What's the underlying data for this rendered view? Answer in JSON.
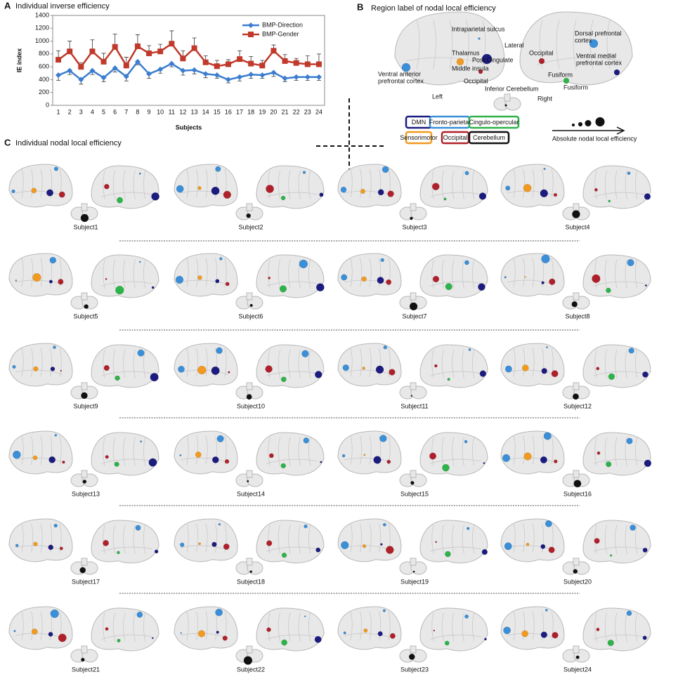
{
  "chart_data": {
    "type": "line",
    "panel": "A",
    "title": "Individual inverse efficiency",
    "xlabel": "Subjects",
    "ylabel": "IE index",
    "categories": [
      "1",
      "2",
      "3",
      "4",
      "5",
      "6",
      "7",
      "8",
      "9",
      "10",
      "11",
      "12",
      "13",
      "14",
      "15",
      "16",
      "17",
      "18",
      "19",
      "20",
      "21",
      "22",
      "23",
      "24"
    ],
    "ylim": [
      0,
      1400
    ],
    "yticks": [
      0,
      200,
      400,
      600,
      800,
      1000,
      1200,
      1400
    ],
    "grid": false,
    "legend": "upper right",
    "series": [
      {
        "name": "BMP-Direction",
        "color": "#3c7dd0",
        "marker": "diamond",
        "error_side": "lower",
        "values": [
          470,
          540,
          400,
          540,
          430,
          580,
          450,
          680,
          490,
          560,
          650,
          540,
          550,
          490,
          470,
          400,
          440,
          480,
          470,
          510,
          420,
          440,
          440,
          440
        ],
        "errors": [
          80,
          60,
          70,
          60,
          60,
          60,
          70,
          50,
          70,
          60,
          50,
          70,
          60,
          60,
          50,
          50,
          60,
          60,
          50,
          60,
          50,
          50,
          50,
          50
        ]
      },
      {
        "name": "BMP-Gender",
        "color": "#c0392b",
        "marker": "square",
        "error_side": "upper",
        "values": [
          710,
          840,
          600,
          840,
          680,
          910,
          620,
          920,
          810,
          840,
          960,
          730,
          890,
          670,
          610,
          640,
          720,
          650,
          620,
          850,
          690,
          660,
          640,
          640
        ],
        "errors": [
          140,
          160,
          60,
          180,
          130,
          200,
          130,
          180,
          120,
          110,
          200,
          120,
          160,
          100,
          90,
          70,
          130,
          110,
          80,
          90,
          100,
          70,
          130,
          160
        ]
      }
    ]
  },
  "panel_b": {
    "label": "B",
    "title": "Region  label of nodal  local efficiency",
    "labels": [
      "Intraparietal sulcus",
      "Lateral",
      "Thalamus",
      "Post Cingulate",
      "Middle insula",
      "Ventral anterior",
      "prefrontal cortex",
      "Occipital",
      "Left",
      "Inferior Cerebellum",
      "Dorsal prefrontal",
      "cortex",
      "Ventral medial",
      "prefrontal cortex",
      "Occipital",
      "Fusiform",
      "Fusiform",
      "Right"
    ],
    "networks": [
      {
        "name": "DMN",
        "color": "#1c1c80"
      },
      {
        "name": "Fronto-parietal",
        "color": "#3a8fd8"
      },
      {
        "name": "Cingulo-opercular",
        "color": "#2db34a"
      },
      {
        "name": "Sensorimotor",
        "color": "#f29a1f"
      },
      {
        "name": "Occipital",
        "color": "#b0202a"
      },
      {
        "name": "Cerebellum",
        "color": "#111111"
      }
    ],
    "size_label": "Absolute nodal local efficiency"
  },
  "panel_c": {
    "label": "C",
    "title": "Individual nodal local efficiency",
    "subjects": [
      "Subject1",
      "Subject2",
      "Subject3",
      "Subject4",
      "Subject5",
      "Subject6",
      "Subject7",
      "Subject8",
      "Subject9",
      "Subject10",
      "Subject11",
      "Subject12",
      "Subject13",
      "Subject14",
      "Subject15",
      "Subject16",
      "Subject17",
      "Subject18",
      "Subject19",
      "Subject20",
      "Subject21",
      "Subject22",
      "Subject23",
      "Subject24"
    ]
  }
}
